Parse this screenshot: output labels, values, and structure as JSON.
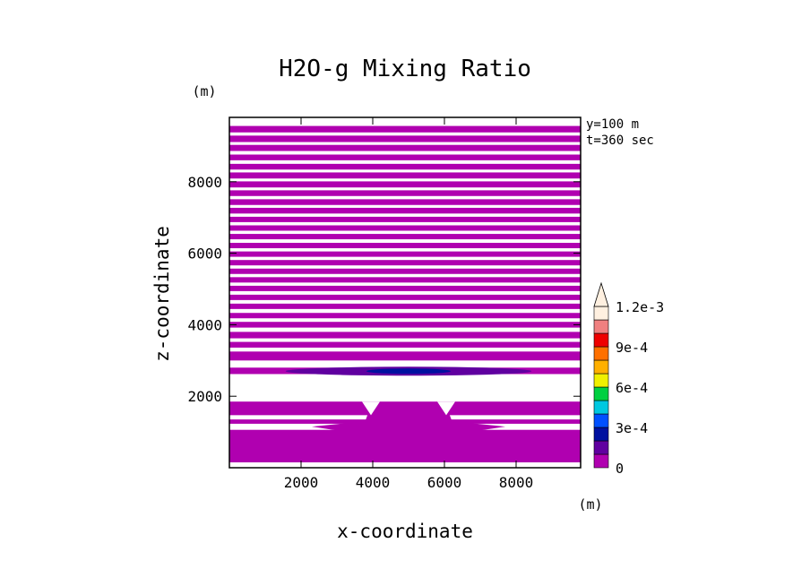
{
  "chart_data": {
    "type": "contour",
    "title": "H2O-g Mixing Ratio",
    "xlabel": "x-coordinate",
    "ylabel": "z-coordinate",
    "x_unit": "(m)",
    "y_unit": "(m)",
    "xlim": [
      0,
      9800
    ],
    "ylim": [
      0,
      9800
    ],
    "xticks": [
      2000,
      4000,
      6000,
      8000
    ],
    "yticks": [
      2000,
      4000,
      6000,
      8000
    ],
    "xtick_labels": [
      "2000",
      "4000",
      "6000",
      "8000"
    ],
    "ytick_labels": [
      "2000",
      "4000",
      "6000",
      "8000"
    ],
    "info": [
      "y=100 m",
      "t=360 sec"
    ],
    "colorbar": {
      "levels": [
        0,
        0.00015,
        0.0003,
        0.00045,
        0.0006,
        0.00075,
        0.0009,
        0.00105,
        0.0012,
        0.00135
      ],
      "labels": [
        {
          "value": 0,
          "text": "0"
        },
        {
          "value": 0.0003,
          "text": "3e-4"
        },
        {
          "value": 0.0006,
          "text": "6e-4"
        },
        {
          "value": 0.0009,
          "text": "9e-4"
        },
        {
          "value": 0.0012,
          "text": "1.2e-3"
        }
      ],
      "colors": [
        "#b000b0",
        "#6000a0",
        "#0010a0",
        "#0050ff",
        "#00c8e0",
        "#00d040",
        "#f0f000",
        "#ffb000",
        "#ff7000",
        "#ee0000",
        "#f08080",
        "#fff0e0"
      ],
      "extend": "max"
    },
    "filled_bands_z": [
      [
        150,
        1060
      ],
      [
        1230,
        1350
      ],
      [
        1470,
        1850
      ],
      [
        2620,
        2800
      ],
      [
        3000,
        3250
      ],
      [
        3360,
        3520
      ],
      [
        3620,
        3800
      ],
      [
        3920,
        4080
      ],
      [
        4180,
        4330
      ],
      [
        4440,
        4590
      ],
      [
        4690,
        4840
      ],
      [
        4940,
        5090
      ],
      [
        5180,
        5330
      ],
      [
        5420,
        5570
      ],
      [
        5660,
        5810
      ],
      [
        5900,
        6050
      ],
      [
        6140,
        6290
      ],
      [
        6390,
        6540
      ],
      [
        6630,
        6780
      ],
      [
        6870,
        7020
      ],
      [
        7110,
        7270
      ],
      [
        7350,
        7510
      ],
      [
        7600,
        7760
      ],
      [
        7840,
        8010
      ],
      [
        8090,
        8260
      ],
      [
        8340,
        8500
      ],
      [
        8600,
        8760
      ],
      [
        8860,
        9030
      ],
      [
        9110,
        9290
      ],
      [
        9380,
        9560
      ]
    ],
    "plume": {
      "x_center": 5000,
      "z_top": 1650,
      "value_color": "#b000b0"
    },
    "maximum_feature": {
      "x_center": 5000,
      "z": 2700,
      "value_note": "slightly above 1.5e-4"
    }
  }
}
